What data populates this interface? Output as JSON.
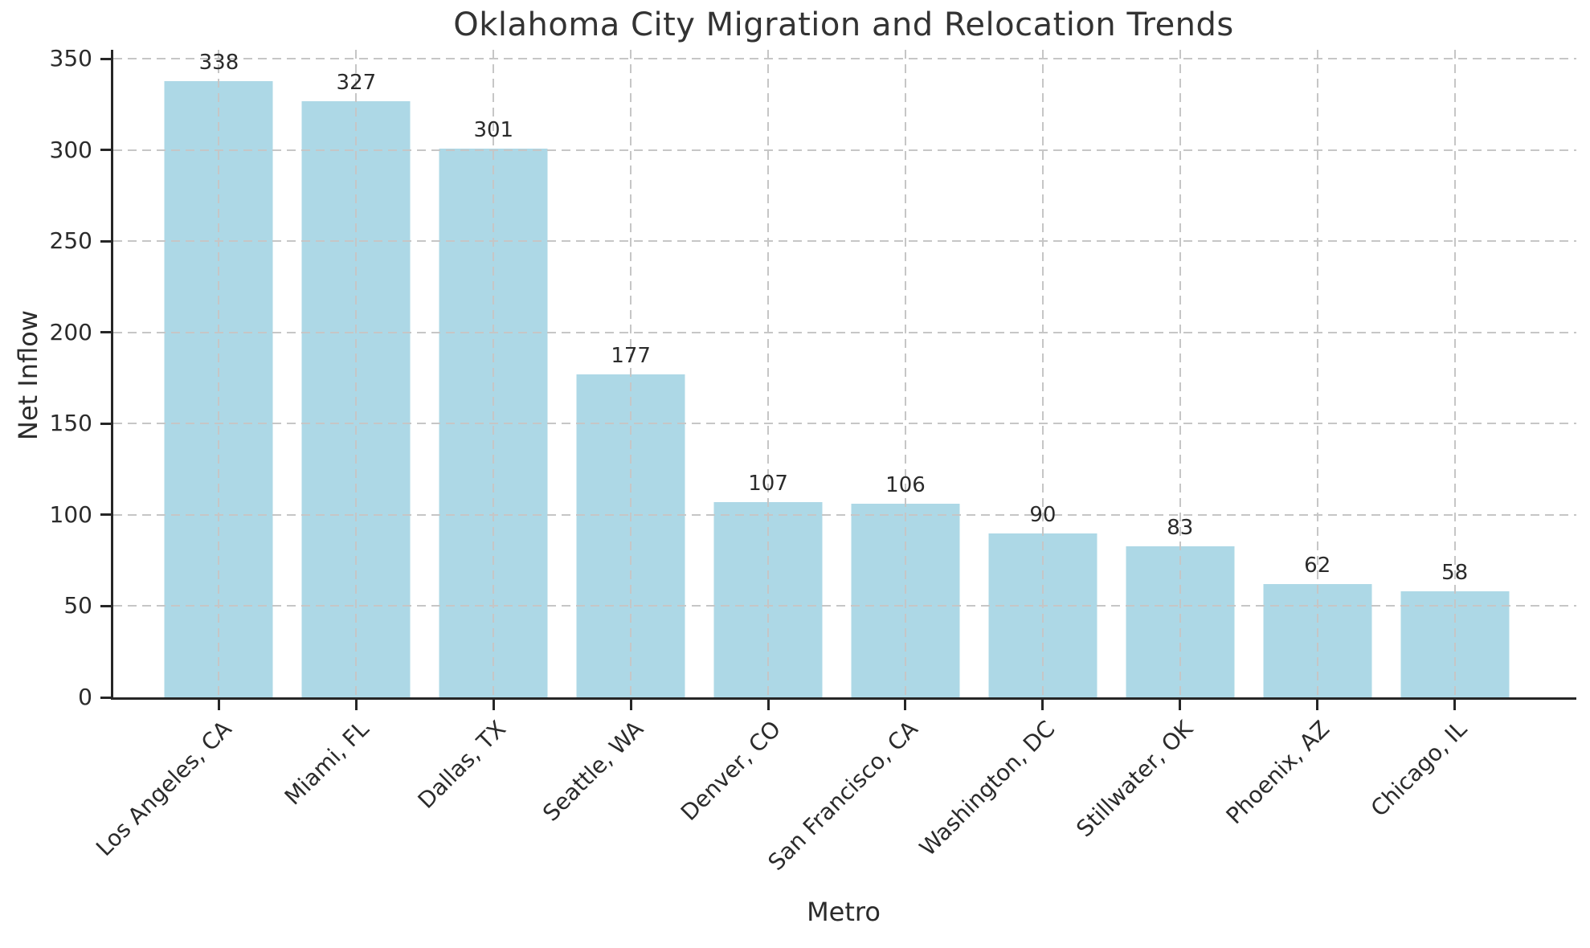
{
  "chart_data": {
    "type": "bar",
    "title": "Oklahoma City Migration and Relocation Trends",
    "xlabel": "Metro",
    "ylabel": "Net Inflow",
    "categories": [
      "Los Angeles, CA",
      "Miami, FL",
      "Dallas, TX",
      "Seattle, WA",
      "Denver, CO",
      "San Francisco, CA",
      "Washington, DC",
      "Stillwater, OK",
      "Phoenix, AZ",
      "Chicago, IL"
    ],
    "values": [
      338,
      327,
      301,
      177,
      107,
      106,
      90,
      83,
      62,
      58
    ],
    "yticks": [
      0,
      50,
      100,
      150,
      200,
      250,
      300,
      350
    ],
    "ylim": [
      0,
      355
    ],
    "grid": true,
    "grid_style": "dashed",
    "grid_over_bars": true,
    "legend": "none",
    "x_tick_rotation_deg": 45,
    "colors": {
      "bar": "#ADD8E6",
      "grid": "#c6c6c6",
      "axis": "#262626",
      "text": "#2b2b2b",
      "title": "#333333",
      "background": "#ffffff"
    }
  }
}
